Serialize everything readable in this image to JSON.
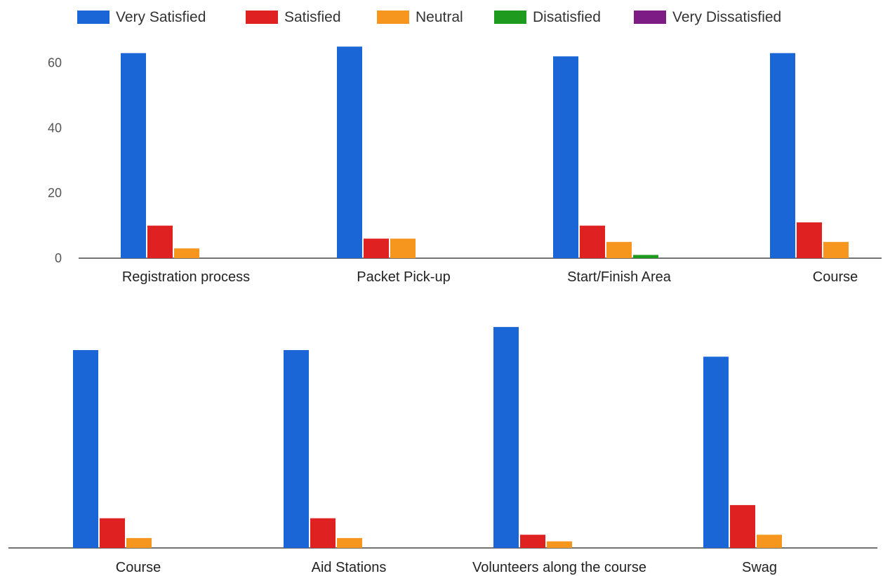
{
  "colors": {
    "very_satisfied": "#1a66d6",
    "satisfied": "#e02121",
    "neutral": "#f7961e",
    "disatisfied": "#1e9a1e",
    "very_dissatisfied": "#7e1c86",
    "axis": "#444444"
  },
  "legend": {
    "items": [
      {
        "label": "Very Satisfied",
        "color": "#1a66d6"
      },
      {
        "label": "Satisfied",
        "color": "#e02121"
      },
      {
        "label": "Neutral",
        "color": "#f7961e"
      },
      {
        "label": "Disatisfied",
        "color": "#1e9a1e"
      },
      {
        "label": "Very Dissatisfied",
        "color": "#7e1c86"
      }
    ]
  },
  "chart_data": [
    {
      "type": "bar",
      "categories": [
        "Registration process",
        "Packet Pick-up",
        "Start/Finish Area",
        "Course"
      ],
      "series": [
        {
          "name": "Very Satisfied",
          "values": [
            63,
            65,
            62,
            63
          ]
        },
        {
          "name": "Satisfied",
          "values": [
            10,
            6,
            10,
            11
          ]
        },
        {
          "name": "Neutral",
          "values": [
            3,
            6,
            5,
            5
          ]
        },
        {
          "name": "Disatisfied",
          "values": [
            0,
            0,
            1,
            0
          ]
        },
        {
          "name": "Very Dissatisfied",
          "values": [
            0,
            0,
            0,
            0
          ]
        }
      ],
      "ylim": [
        0,
        67
      ],
      "yticks": [
        "0",
        "20",
        "40",
        "60"
      ],
      "legend_position": "top",
      "grid": false
    },
    {
      "type": "bar",
      "categories": [
        "Course",
        "Aid Stations",
        "Volunteers along the course",
        "Swag"
      ],
      "series": [
        {
          "name": "Very Satisfied",
          "values": [
            60,
            60,
            67,
            58
          ]
        },
        {
          "name": "Satisfied",
          "values": [
            9,
            9,
            4,
            13
          ]
        },
        {
          "name": "Neutral",
          "values": [
            3,
            3,
            2,
            4
          ]
        },
        {
          "name": "Disatisfied",
          "values": [
            0,
            0,
            0,
            0
          ]
        },
        {
          "name": "Very Dissatisfied",
          "values": [
            0,
            0,
            0,
            0
          ]
        }
      ],
      "ylim": [
        0,
        67
      ],
      "yticks": [],
      "grid": false
    }
  ]
}
